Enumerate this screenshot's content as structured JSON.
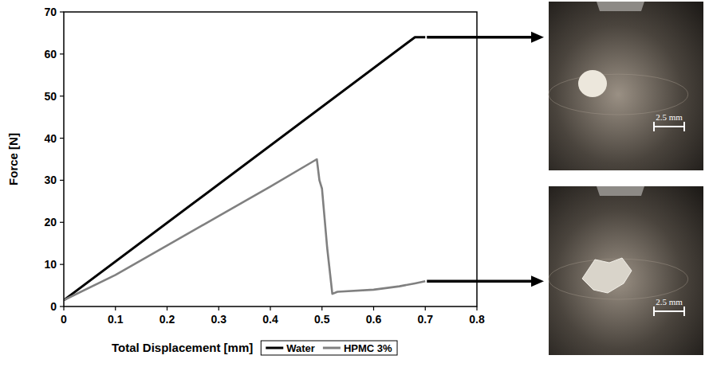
{
  "chart_data": {
    "type": "line",
    "x_label": "Total Displacement [mm]",
    "y_label": "Force [N]",
    "xlim": [
      0,
      0.8
    ],
    "xticks": [
      0,
      0.1,
      0.2,
      0.3,
      0.4,
      0.5,
      0.6,
      0.7,
      0.8
    ],
    "ylim": [
      0,
      70
    ],
    "yticks": [
      0,
      10,
      20,
      30,
      40,
      50,
      60,
      70
    ],
    "legend": "bottom",
    "series": [
      {
        "name": "Water",
        "color": "#000000",
        "x": [
          0,
          0.68,
          0.7
        ],
        "values": [
          1.5,
          64,
          64
        ]
      },
      {
        "name": "HPMC 3%",
        "color": "#808080",
        "x": [
          0,
          0.1,
          0.2,
          0.3,
          0.4,
          0.49,
          0.495,
          0.5,
          0.51,
          0.52,
          0.53,
          0.6,
          0.65,
          0.68,
          0.7
        ],
        "values": [
          1.5,
          7.5,
          14.5,
          21.5,
          28.5,
          35,
          30,
          28,
          14,
          3,
          3.5,
          4,
          4.8,
          5.5,
          6
        ]
      }
    ],
    "images": [
      {
        "scale_label": "2.5 mm"
      },
      {
        "scale_label": "2.5 mm"
      }
    ]
  }
}
